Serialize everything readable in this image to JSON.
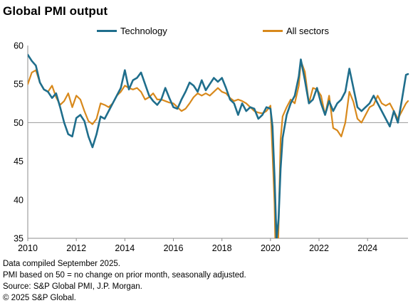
{
  "chart_data": {
    "type": "line",
    "title": "Global PMI output",
    "xlabel": "",
    "ylabel": "",
    "ylim": [
      35,
      60
    ],
    "xlim": [
      "2010-01",
      "2025-09"
    ],
    "yticks": [
      "60",
      "55",
      "50",
      "45",
      "40",
      "35"
    ],
    "xticks": [
      "2010",
      "2012",
      "2014",
      "2016",
      "2018",
      "2020",
      "2022",
      "2024"
    ],
    "reference_line": 50,
    "grid": false,
    "legend_position": "top",
    "series": [
      {
        "name": "Technology",
        "color": "#1f6e8c",
        "points": [
          [
            "2010-01",
            58.8
          ],
          [
            "2010-03",
            58.0
          ],
          [
            "2010-05",
            57.4
          ],
          [
            "2010-07",
            55.2
          ],
          [
            "2010-09",
            54.3
          ],
          [
            "2010-11",
            54.0
          ],
          [
            "2011-01",
            53.2
          ],
          [
            "2011-03",
            53.8
          ],
          [
            "2011-05",
            52.0
          ],
          [
            "2011-07",
            50.0
          ],
          [
            "2011-09",
            48.5
          ],
          [
            "2011-11",
            48.2
          ],
          [
            "2012-01",
            50.6
          ],
          [
            "2012-03",
            51.0
          ],
          [
            "2012-05",
            50.2
          ],
          [
            "2012-07",
            48.2
          ],
          [
            "2012-09",
            46.8
          ],
          [
            "2012-11",
            48.5
          ],
          [
            "2013-01",
            50.8
          ],
          [
            "2013-03",
            50.5
          ],
          [
            "2013-05",
            51.5
          ],
          [
            "2013-07",
            52.5
          ],
          [
            "2013-09",
            53.5
          ],
          [
            "2013-11",
            54.5
          ],
          [
            "2014-01",
            56.8
          ],
          [
            "2014-03",
            54.3
          ],
          [
            "2014-05",
            55.5
          ],
          [
            "2014-07",
            55.8
          ],
          [
            "2014-09",
            56.5
          ],
          [
            "2014-11",
            55.0
          ],
          [
            "2015-01",
            53.5
          ],
          [
            "2015-03",
            52.8
          ],
          [
            "2015-05",
            52.3
          ],
          [
            "2015-07",
            53.0
          ],
          [
            "2015-09",
            54.5
          ],
          [
            "2015-11",
            53.2
          ],
          [
            "2016-01",
            52.0
          ],
          [
            "2016-03",
            51.8
          ],
          [
            "2016-05",
            53.0
          ],
          [
            "2016-07",
            54.0
          ],
          [
            "2016-09",
            55.2
          ],
          [
            "2016-11",
            54.8
          ],
          [
            "2017-01",
            54.0
          ],
          [
            "2017-03",
            55.5
          ],
          [
            "2017-05",
            54.2
          ],
          [
            "2017-07",
            55.0
          ],
          [
            "2017-09",
            55.8
          ],
          [
            "2017-11",
            55.3
          ],
          [
            "2018-01",
            55.8
          ],
          [
            "2018-03",
            54.5
          ],
          [
            "2018-05",
            53.0
          ],
          [
            "2018-07",
            52.5
          ],
          [
            "2018-09",
            51.0
          ],
          [
            "2018-11",
            52.5
          ],
          [
            "2019-01",
            51.5
          ],
          [
            "2019-03",
            52.0
          ],
          [
            "2019-05",
            51.8
          ],
          [
            "2019-07",
            50.5
          ],
          [
            "2019-09",
            51.0
          ],
          [
            "2019-11",
            52.0
          ],
          [
            "2020-01",
            51.8
          ],
          [
            "2020-02",
            49.5
          ],
          [
            "2020-03",
            43.0
          ],
          [
            "2020-04",
            34.8
          ],
          [
            "2020-05",
            37.5
          ],
          [
            "2020-06",
            44.0
          ],
          [
            "2020-07",
            48.0
          ],
          [
            "2020-09",
            51.0
          ],
          [
            "2020-11",
            52.5
          ],
          [
            "2021-01",
            53.5
          ],
          [
            "2021-03",
            56.0
          ],
          [
            "2021-04",
            58.2
          ],
          [
            "2021-06",
            55.5
          ],
          [
            "2021-08",
            52.5
          ],
          [
            "2021-10",
            53.0
          ],
          [
            "2021-12",
            54.5
          ],
          [
            "2022-02",
            52.5
          ],
          [
            "2022-04",
            51.0
          ],
          [
            "2022-06",
            52.8
          ],
          [
            "2022-08",
            51.5
          ],
          [
            "2022-10",
            52.5
          ],
          [
            "2022-12",
            53.0
          ],
          [
            "2023-02",
            54.0
          ],
          [
            "2023-04",
            57.0
          ],
          [
            "2023-06",
            54.5
          ],
          [
            "2023-08",
            52.0
          ],
          [
            "2023-10",
            51.5
          ],
          [
            "2023-12",
            52.0
          ],
          [
            "2024-02",
            52.5
          ],
          [
            "2024-04",
            53.5
          ],
          [
            "2024-06",
            52.5
          ],
          [
            "2024-08",
            51.5
          ],
          [
            "2024-10",
            50.5
          ],
          [
            "2024-12",
            49.5
          ],
          [
            "2025-02",
            51.5
          ],
          [
            "2025-04",
            50.0
          ],
          [
            "2025-06",
            53.0
          ],
          [
            "2025-08",
            56.2
          ],
          [
            "2025-09",
            56.3
          ]
        ]
      },
      {
        "name": "All sectors",
        "color": "#d8891c",
        "points": [
          [
            "2010-01",
            55.0
          ],
          [
            "2010-03",
            56.5
          ],
          [
            "2010-05",
            56.8
          ],
          [
            "2010-07",
            55.2
          ],
          [
            "2010-09",
            54.3
          ],
          [
            "2010-11",
            54.0
          ],
          [
            "2011-01",
            54.8
          ],
          [
            "2011-03",
            53.3
          ],
          [
            "2011-05",
            52.3
          ],
          [
            "2011-07",
            52.8
          ],
          [
            "2011-09",
            53.8
          ],
          [
            "2011-11",
            52.0
          ],
          [
            "2012-01",
            53.5
          ],
          [
            "2012-03",
            53.0
          ],
          [
            "2012-05",
            51.5
          ],
          [
            "2012-07",
            50.2
          ],
          [
            "2012-09",
            49.8
          ],
          [
            "2012-11",
            50.5
          ],
          [
            "2013-01",
            52.5
          ],
          [
            "2013-03",
            52.3
          ],
          [
            "2013-05",
            52.0
          ],
          [
            "2013-07",
            52.5
          ],
          [
            "2013-09",
            53.5
          ],
          [
            "2013-11",
            54.0
          ],
          [
            "2014-01",
            54.8
          ],
          [
            "2014-03",
            54.5
          ],
          [
            "2014-05",
            54.3
          ],
          [
            "2014-07",
            54.5
          ],
          [
            "2014-09",
            54.0
          ],
          [
            "2014-11",
            53.0
          ],
          [
            "2015-01",
            53.3
          ],
          [
            "2015-03",
            53.8
          ],
          [
            "2015-05",
            53.0
          ],
          [
            "2015-07",
            53.0
          ],
          [
            "2015-09",
            52.8
          ],
          [
            "2015-11",
            52.6
          ],
          [
            "2016-01",
            52.5
          ],
          [
            "2016-03",
            52.0
          ],
          [
            "2016-05",
            51.5
          ],
          [
            "2016-07",
            51.8
          ],
          [
            "2016-09",
            52.5
          ],
          [
            "2016-11",
            53.3
          ],
          [
            "2017-01",
            53.8
          ],
          [
            "2017-03",
            53.5
          ],
          [
            "2017-05",
            53.8
          ],
          [
            "2017-07",
            53.5
          ],
          [
            "2017-09",
            54.0
          ],
          [
            "2017-11",
            54.5
          ],
          [
            "2018-01",
            54.0
          ],
          [
            "2018-03",
            53.8
          ],
          [
            "2018-05",
            53.2
          ],
          [
            "2018-07",
            52.8
          ],
          [
            "2018-09",
            53.0
          ],
          [
            "2018-11",
            52.8
          ],
          [
            "2019-01",
            52.5
          ],
          [
            "2019-03",
            52.0
          ],
          [
            "2019-05",
            51.5
          ],
          [
            "2019-07",
            51.3
          ],
          [
            "2019-09",
            51.2
          ],
          [
            "2019-11",
            51.5
          ],
          [
            "2020-01",
            52.2
          ],
          [
            "2020-02",
            46.0
          ],
          [
            "2020-03",
            39.5
          ],
          [
            "2020-04",
            26.5
          ],
          [
            "2020-05",
            36.5
          ],
          [
            "2020-06",
            47.8
          ],
          [
            "2020-07",
            50.8
          ],
          [
            "2020-09",
            52.0
          ],
          [
            "2020-11",
            53.0
          ],
          [
            "2021-01",
            52.5
          ],
          [
            "2021-03",
            54.8
          ],
          [
            "2021-04",
            58.0
          ],
          [
            "2021-06",
            56.6
          ],
          [
            "2021-08",
            52.5
          ],
          [
            "2021-10",
            54.5
          ],
          [
            "2021-12",
            54.3
          ],
          [
            "2022-02",
            53.5
          ],
          [
            "2022-04",
            51.0
          ],
          [
            "2022-06",
            53.5
          ],
          [
            "2022-08",
            49.3
          ],
          [
            "2022-10",
            49.0
          ],
          [
            "2022-12",
            48.2
          ],
          [
            "2023-02",
            50.0
          ],
          [
            "2023-04",
            54.0
          ],
          [
            "2023-06",
            52.7
          ],
          [
            "2023-08",
            50.5
          ],
          [
            "2023-10",
            50.0
          ],
          [
            "2023-12",
            51.0
          ],
          [
            "2024-02",
            52.0
          ],
          [
            "2024-04",
            52.3
          ],
          [
            "2024-06",
            53.5
          ],
          [
            "2024-08",
            52.5
          ],
          [
            "2024-10",
            52.2
          ],
          [
            "2024-12",
            52.5
          ],
          [
            "2025-02",
            51.5
          ],
          [
            "2025-04",
            50.5
          ],
          [
            "2025-06",
            51.5
          ],
          [
            "2025-08",
            52.5
          ],
          [
            "2025-09",
            52.8
          ]
        ]
      }
    ]
  },
  "footnotes": {
    "line1": "Data compiled September 2025.",
    "line2": "PMI based on 50 = no change on prior month, seasonally adjusted.",
    "line3": "Source: S&P Global PMI, J.P. Morgan.",
    "line4": "© 2025 S&P Global."
  }
}
